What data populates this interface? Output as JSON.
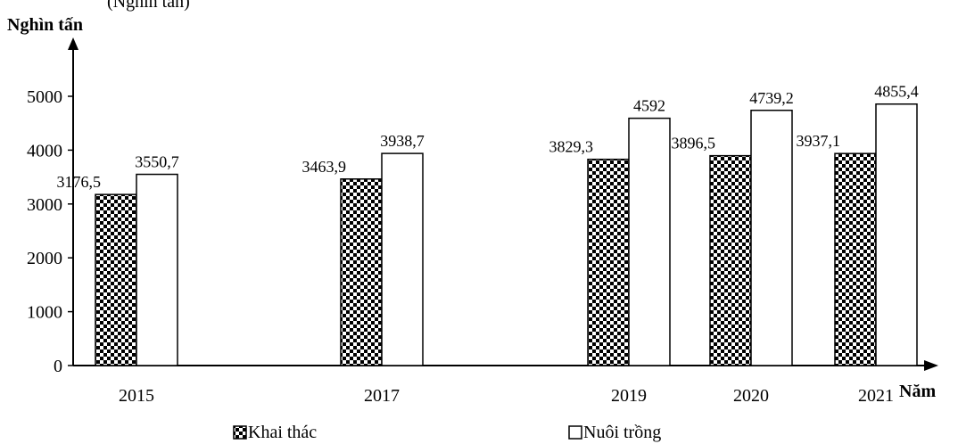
{
  "header_fragment": "(Nghìn tấn)",
  "chart_data": {
    "type": "bar",
    "ylabel": "Nghìn tấn",
    "xlabel": "Năm",
    "categories": [
      "2015",
      "2017",
      "2019",
      "2020",
      "2021"
    ],
    "series": [
      {
        "name": "Khai thác",
        "values": [
          3176.5,
          3463.9,
          3829.3,
          3896.5,
          3937.1
        ],
        "labels": [
          "3176,5",
          "3463,9",
          "3829,3",
          "3896,5",
          "3937,1"
        ],
        "pattern": "checkerboard",
        "color": "#000000"
      },
      {
        "name": "Nuôi trồng",
        "values": [
          3550.7,
          3938.7,
          4592,
          4739.2,
          4855.4
        ],
        "labels": [
          "3550,7",
          "3938,7",
          "4592",
          "4739,2",
          "4855,4"
        ],
        "pattern": "white",
        "color": "#ffffff"
      }
    ],
    "yticks": [
      "0",
      "1000",
      "2000",
      "3000",
      "4000",
      "5000"
    ],
    "ylim": [
      0,
      5000
    ],
    "grid": false,
    "legend_position": "bottom"
  }
}
